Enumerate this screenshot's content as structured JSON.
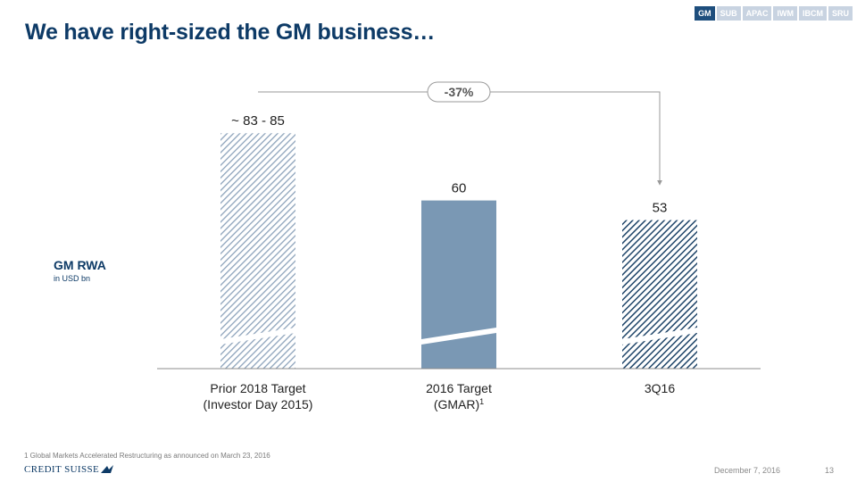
{
  "header": {
    "title": "We have right-sized the GM business…",
    "tabs": [
      {
        "label": "GM",
        "active": true
      },
      {
        "label": "SUB",
        "active": false
      },
      {
        "label": "APAC",
        "active": false
      },
      {
        "label": "IWM",
        "active": false
      },
      {
        "label": "IBCM",
        "active": false
      },
      {
        "label": "SRU",
        "active": false
      }
    ]
  },
  "metric": {
    "label": "GM RWA",
    "unit": "in USD bn"
  },
  "chart_data": {
    "type": "bar",
    "title": "GM RWA",
    "ylabel": "in USD bn",
    "axis_break": true,
    "categories": [
      {
        "line1": "Prior 2018 Target",
        "line2": "(Investor Day 2015)",
        "sup": ""
      },
      {
        "line1": "2016 Target",
        "line2": "(GMAR)",
        "sup": "1"
      },
      {
        "line1": "3Q16",
        "line2": "",
        "sup": ""
      }
    ],
    "values": [
      84,
      60,
      53
    ],
    "value_labels": [
      "~ 83 - 85",
      "60",
      "53"
    ],
    "styles": [
      "light-hatch",
      "solid",
      "dark-hatch"
    ],
    "colors": {
      "light": "#8da3bb",
      "solid": "#7a98b4",
      "dark": "#1f4569"
    },
    "annotation": {
      "text": "-37%",
      "from_category": 0,
      "to_category": 2
    }
  },
  "footer": {
    "footnote": "1 Global Markets Accelerated Restructuring as announced on March 23, 2016",
    "logo": "CREDIT SUISSE",
    "date": "December 7, 2016",
    "page": "13"
  }
}
